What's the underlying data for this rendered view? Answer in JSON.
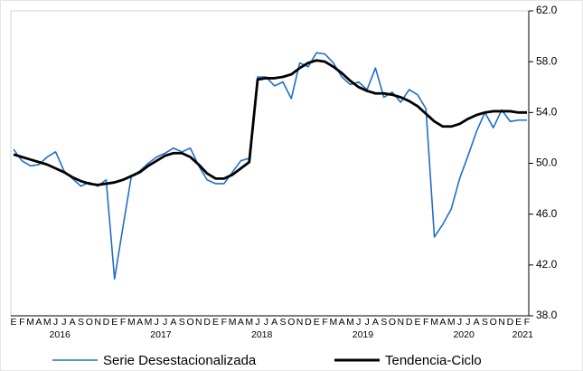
{
  "chart_data": {
    "type": "line",
    "categories": [
      "E",
      "F",
      "M",
      "A",
      "M",
      "J",
      "J",
      "A",
      "S",
      "O",
      "N",
      "D",
      "E",
      "F",
      "M",
      "A",
      "M",
      "J",
      "J",
      "A",
      "S",
      "O",
      "N",
      "D",
      "E",
      "F",
      "M",
      "A",
      "M",
      "J",
      "J",
      "A",
      "S",
      "O",
      "N",
      "D",
      "E",
      "F",
      "M",
      "A",
      "M",
      "J",
      "J",
      "A",
      "S",
      "O",
      "N",
      "D",
      "E",
      "F",
      "M",
      "A",
      "M",
      "J",
      "J",
      "A",
      "S",
      "O",
      "N",
      "D",
      "E",
      "F"
    ],
    "years": [
      "2016",
      "2017",
      "2018",
      "2019",
      "2020",
      "2021"
    ],
    "series": [
      {
        "name": "Serie Desestacionalizada",
        "color": "#1f6fc5",
        "values": [
          51.1,
          50.2,
          49.8,
          49.9,
          50.5,
          50.9,
          49.4,
          48.8,
          48.2,
          48.5,
          48.2,
          48.7,
          40.9,
          45.0,
          49.0,
          49.4,
          50.0,
          50.5,
          50.8,
          51.2,
          50.9,
          51.2,
          49.8,
          48.7,
          48.4,
          48.4,
          49.3,
          50.2,
          50.4,
          56.8,
          56.8,
          56.1,
          56.4,
          55.1,
          57.9,
          57.6,
          58.7,
          58.6,
          57.9,
          56.8,
          56.2,
          56.4,
          55.8,
          57.5,
          55.2,
          55.6,
          54.8,
          55.8,
          55.4,
          54.3,
          44.2,
          45.2,
          46.4,
          48.8,
          50.6,
          52.5,
          54.0,
          52.8,
          54.2,
          53.3,
          53.4,
          53.4
        ]
      },
      {
        "name": "Tendencia-Ciclo",
        "color": "#000000",
        "values": [
          50.7,
          50.5,
          50.3,
          50.1,
          49.9,
          49.6,
          49.3,
          48.9,
          48.6,
          48.4,
          48.3,
          48.4,
          48.5,
          48.7,
          49.0,
          49.3,
          49.8,
          50.2,
          50.6,
          50.8,
          50.8,
          50.5,
          49.9,
          49.2,
          48.8,
          48.8,
          49.1,
          49.6,
          50.1,
          56.6,
          56.7,
          56.7,
          56.8,
          57.0,
          57.5,
          57.9,
          58.1,
          58.0,
          57.6,
          57.1,
          56.5,
          56.0,
          55.7,
          55.5,
          55.5,
          55.4,
          55.2,
          54.9,
          54.5,
          53.9,
          53.3,
          52.9,
          52.9,
          53.1,
          53.5,
          53.8,
          54.0,
          54.1,
          54.1,
          54.1,
          54.0,
          54.0
        ]
      }
    ],
    "ylim": [
      38,
      62
    ],
    "yticks": [
      {
        "value": 38,
        "label": "38.0"
      },
      {
        "value": 42,
        "label": "42.0"
      },
      {
        "value": 46,
        "label": "46.0"
      },
      {
        "value": 50,
        "label": "50.0"
      },
      {
        "value": 54,
        "label": "54.0"
      },
      {
        "value": 58,
        "label": "58.0"
      },
      {
        "value": 62,
        "label": "62.0"
      }
    ],
    "legend": "bottom"
  }
}
